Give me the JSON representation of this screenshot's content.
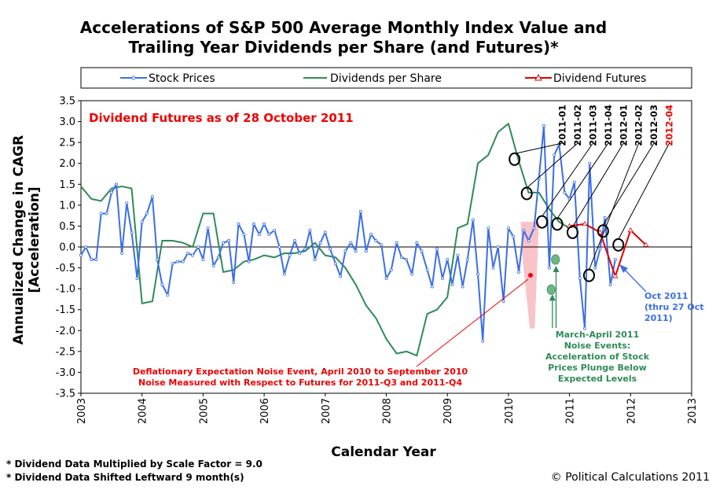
{
  "chart_data": {
    "type": "line",
    "title": [
      "Accelerations of S&P 500 Average Monthly Index Value and",
      "Trailing Year Dividends per Share (and Futures)*"
    ],
    "xlabel": "Calendar Year",
    "ylabel": [
      "Annualized Change in CAGR",
      "[Acceleration]"
    ],
    "xlim": [
      2003,
      2013
    ],
    "ylim": [
      -3.5,
      3.5
    ],
    "x_ticks": [
      "2003",
      "2004",
      "2005",
      "2006",
      "2007",
      "2008",
      "2009",
      "2010",
      "2011",
      "2012",
      "2013"
    ],
    "y_ticks": [
      "3.5",
      "3.0",
      "2.5",
      "2.0",
      "1.5",
      "1.0",
      "0.5",
      "0.0",
      "-0.5",
      "-1.0",
      "-1.5",
      "-2.0",
      "-2.5",
      "-3.0",
      "-3.5"
    ],
    "grid": false,
    "legend": [
      "Stock Prices",
      "Dividends per Share",
      "Dividend Futures"
    ],
    "colors": {
      "stock": "#3a6ee8",
      "dividends": "#2e8b57",
      "futures": "#dd0000",
      "shade": "#f7b8c0",
      "annotation_red": "#ee0000",
      "annotation_blue": "#3a6ee8",
      "annotation_green": "#2e8b57"
    },
    "series": [
      {
        "name": "Stock Prices",
        "x": [
          2003.0,
          2003.08,
          2003.17,
          2003.25,
          2003.33,
          2003.42,
          2003.5,
          2003.58,
          2003.67,
          2003.75,
          2003.83,
          2003.92,
          2004.0,
          2004.08,
          2004.17,
          2004.25,
          2004.33,
          2004.42,
          2004.5,
          2004.58,
          2004.67,
          2004.75,
          2004.83,
          2004.92,
          2005.0,
          2005.08,
          2005.17,
          2005.25,
          2005.33,
          2005.42,
          2005.5,
          2005.58,
          2005.67,
          2005.75,
          2005.83,
          2005.92,
          2006.0,
          2006.08,
          2006.17,
          2006.25,
          2006.33,
          2006.42,
          2006.5,
          2006.58,
          2006.67,
          2006.75,
          2006.83,
          2006.92,
          2007.0,
          2007.08,
          2007.17,
          2007.25,
          2007.33,
          2007.42,
          2007.5,
          2007.58,
          2007.67,
          2007.75,
          2007.83,
          2007.92,
          2008.0,
          2008.08,
          2008.17,
          2008.25,
          2008.33,
          2008.42,
          2008.5,
          2008.58,
          2008.67,
          2008.75,
          2008.83,
          2008.92,
          2009.0,
          2009.08,
          2009.17,
          2009.25,
          2009.33,
          2009.42,
          2009.5,
          2009.58,
          2009.67,
          2009.75,
          2009.83,
          2009.92,
          2010.0,
          2010.08,
          2010.17,
          2010.25,
          2010.33,
          2010.42,
          2010.5,
          2010.58,
          2010.67,
          2010.75,
          2010.83,
          2010.92,
          2011.0,
          2011.08,
          2011.17,
          2011.25,
          2011.33,
          2011.42,
          2011.5,
          2011.58,
          2011.67,
          2011.75
        ],
        "values": [
          -0.2,
          0.0,
          -0.3,
          -0.3,
          0.8,
          0.8,
          1.3,
          1.5,
          -0.15,
          1.05,
          0.35,
          -0.75,
          0.6,
          0.8,
          1.2,
          -0.3,
          -0.9,
          -1.15,
          -0.4,
          -0.35,
          -0.35,
          -0.15,
          -0.2,
          0.0,
          -0.3,
          0.45,
          -0.45,
          -0.25,
          0.1,
          0.15,
          -0.85,
          0.55,
          0.3,
          -0.35,
          0.55,
          0.3,
          0.55,
          0.3,
          0.4,
          0.0,
          -0.65,
          -0.2,
          0.15,
          -0.15,
          -0.05,
          0.4,
          -0.3,
          0.1,
          0.35,
          -0.05,
          -0.4,
          -0.7,
          -0.1,
          0.1,
          -0.1,
          0.85,
          -0.1,
          0.3,
          0.15,
          0.05,
          -0.75,
          -0.55,
          0.1,
          -0.25,
          -0.3,
          -0.65,
          0.1,
          -0.1,
          -0.55,
          -0.95,
          -0.05,
          -0.75,
          -0.3,
          -0.9,
          -0.2,
          -0.95,
          -0.3,
          0.65,
          -0.65,
          -2.25,
          0.45,
          -0.5,
          0.0,
          -1.3,
          0.45,
          0.25,
          -0.6,
          0.4,
          0.15,
          0.45,
          1.65,
          2.9,
          -0.5,
          2.2,
          2.45,
          1.3,
          1.15,
          1.55,
          -0.75,
          -1.95,
          2.0,
          -0.5,
          -0.05,
          0.7,
          -0.9,
          -0.3
        ]
      },
      {
        "name": "Dividends per Share",
        "x": [
          2003.0,
          2003.17,
          2003.33,
          2003.5,
          2003.67,
          2003.83,
          2004.0,
          2004.17,
          2004.33,
          2004.5,
          2004.67,
          2004.83,
          2005.0,
          2005.17,
          2005.33,
          2005.5,
          2005.67,
          2005.83,
          2006.0,
          2006.17,
          2006.33,
          2006.5,
          2006.67,
          2006.83,
          2007.0,
          2007.17,
          2007.33,
          2007.5,
          2007.67,
          2007.83,
          2008.0,
          2008.17,
          2008.33,
          2008.5,
          2008.67,
          2008.83,
          2009.0,
          2009.17,
          2009.33,
          2009.5,
          2009.67,
          2009.83,
          2010.0,
          2010.17,
          2010.33,
          2010.5,
          2010.67,
          2010.83,
          2011.0
        ],
        "values": [
          1.45,
          1.15,
          1.1,
          1.4,
          1.45,
          1.4,
          -1.35,
          -1.3,
          0.15,
          0.15,
          0.1,
          0.0,
          0.8,
          0.8,
          -0.6,
          -0.55,
          -0.35,
          -0.3,
          -0.2,
          -0.25,
          -0.15,
          -0.15,
          -0.1,
          0.1,
          -0.2,
          -0.25,
          -0.5,
          -0.9,
          -1.4,
          -1.7,
          -2.2,
          -2.55,
          -2.5,
          -2.6,
          -1.6,
          -1.5,
          -1.2,
          0.45,
          0.55,
          2.0,
          2.2,
          2.75,
          2.95,
          2.05,
          1.3,
          1.3,
          0.9,
          0.6,
          0.45
        ]
      },
      {
        "name": "Dividend Futures",
        "x": [
          2011.0,
          2011.25,
          2011.5,
          2011.75,
          2012.0,
          2012.25
        ],
        "values": [
          0.5,
          0.55,
          0.35,
          -0.7,
          0.4,
          0.05
        ]
      }
    ],
    "quarter_labels": [
      {
        "label": "2011-01",
        "x": 2011.0
      },
      {
        "label": "2011-02",
        "x": 2011.25
      },
      {
        "label": "2011-03",
        "x": 2011.5
      },
      {
        "label": "2011-04",
        "x": 2011.75
      },
      {
        "label": "2012-01",
        "x": 2012.0
      },
      {
        "label": "2012-02",
        "x": 2012.25
      },
      {
        "label": "2012-03",
        "x": 2012.5
      },
      {
        "label": "2012-04",
        "x": 2012.75
      }
    ],
    "circle_points": [
      {
        "x": 2010.1,
        "y": 2.1
      },
      {
        "x": 2010.3,
        "y": 1.28
      },
      {
        "x": 2010.55,
        "y": 0.6
      },
      {
        "x": 2010.8,
        "y": 0.55
      },
      {
        "x": 2011.05,
        "y": 0.35
      },
      {
        "x": 2011.32,
        "y": -0.68
      },
      {
        "x": 2011.55,
        "y": 0.38
      },
      {
        "x": 2011.8,
        "y": 0.05
      }
    ],
    "green_circles": [
      {
        "x": 2010.7,
        "y": -1.02
      },
      {
        "x": 2010.77,
        "y": -0.3
      }
    ],
    "annotations": {
      "futures_note": "Dividend Futures as of 28 October 2011",
      "deflation_note": [
        "Deflationary Expectation Noise Event, April 2010 to September 2010",
        "Noise Measured with Respect to Futures for 2011-Q3 and 2011-Q4"
      ],
      "oct_note": [
        "Oct 2011",
        "(thru 27 Oct",
        "2011)"
      ],
      "march_april_note": [
        "March-April 2011",
        "Noise Events:",
        "Acceleration of Stock",
        "Prices Plunge Below",
        "Expected Levels"
      ]
    }
  },
  "footnotes": [
    "* Dividend Data Multiplied by Scale Factor = 9.0",
    "* Dividend Data Shifted Leftward 9 month(s)"
  ],
  "credit": "© Political Calculations 2011"
}
